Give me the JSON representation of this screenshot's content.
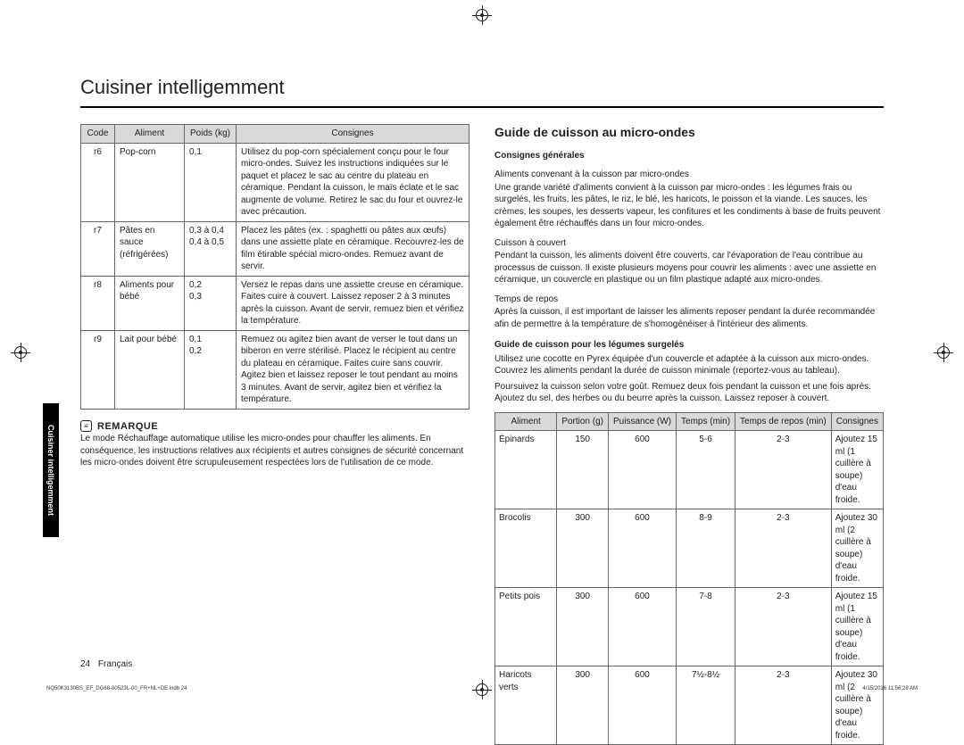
{
  "heading": "Cuisiner intelligemment",
  "sidetab": "Cuisiner intelligemment",
  "table1": {
    "headers": [
      "Code",
      "Aliment",
      "Poids (kg)",
      "Consignes"
    ],
    "rows": [
      {
        "code": "r6",
        "aliment": "Pop-corn",
        "poids": "0,1",
        "cons": "Utilisez du pop-corn spécialement conçu pour le four micro-ondes. Suivez les instructions indiquées sur le paquet et placez le sac au centre du plateau en céramique. Pendant la cuisson, le maïs éclate et le sac augmente de volume. Retirez le sac du four et ouvrez-le avec précaution."
      },
      {
        "code": "r7",
        "aliment": "Pâtes en sauce (réfrigérées)",
        "poids": "0,3 à 0,4\n0,4 à 0,5",
        "cons": "Placez les pâtes (ex. : spaghetti ou pâtes aux œufs) dans une assiette plate en céramique. Recouvrez-les de film étirable spécial micro-ondes. Remuez avant de servir."
      },
      {
        "code": "r8",
        "aliment": "Aliments pour bébé",
        "poids": "0,2\n0,3",
        "cons": "Versez le repas dans une assiette creuse en céramique. Faites cuire à couvert. Laissez reposer 2 à 3 minutes après la cuisson. Avant de servir, remuez bien et vérifiez la température."
      },
      {
        "code": "r9",
        "aliment": "Lait pour bébé",
        "poids": "0,1\n0,2",
        "cons": "Remuez ou agitez bien avant de verser le tout dans un biberon en verre stérilisé. Placez le récipient au centre du plateau en céramique. Faites cuire sans couvrir. Agitez bien et laissez reposer le tout pendant au moins 3 minutes. Avant de servir, agitez bien et vérifiez la température."
      }
    ]
  },
  "remark": {
    "label": "REMARQUE",
    "text": "Le mode Réchauffage automatique utilise les micro-ondes pour chauffer les aliments. En conséquence, les instructions relatives aux récipients et autres consignes de sécurité concernant les micro-ondes doivent être scrupuleusement respectées lors de l'utilisation de ce mode."
  },
  "right": {
    "title": "Guide de cuisson au micro-ondes",
    "h_cons": "Consignes générales",
    "h_aliments": "Aliments convenant à la cuisson par micro-ondes",
    "p_aliments": "Une grande variété d'aliments convient à la cuisson par micro-ondes : les légumes frais ou surgelés, les fruits, les pâtes, le riz, le blé, les haricots, le poisson et la viande. Les sauces, les crèmes, les soupes, les desserts vapeur, les confitures et les condiments à base de fruits peuvent également être réchauffés dans un four micro-ondes.",
    "h_couvert": "Cuisson à couvert",
    "p_couvert": "Pendant la cuisson, les aliments doivent être couverts, car l'évaporation de l'eau contribue au processus de cuisson. Il existe plusieurs moyens pour couvrir les aliments : avec une assiette en céramique, un couvercle en plastique ou un film plastique adapté aux micro-ondes.",
    "h_repos": "Temps de repos",
    "p_repos": "Après la cuisson, il est important de laisser les aliments reposer pendant la durée recommandée afin de permettre à la température de s'homogénéiser à l'intérieur des aliments.",
    "h_guide2": "Guide de cuisson pour les légumes surgelés",
    "p_guide2a": "Utilisez une cocotte en Pyrex équipée d'un couvercle et adaptée à la cuisson aux micro-ondes. Couvrez les aliments pendant la durée de cuisson minimale (reportez-vous au tableau).",
    "p_guide2b": "Poursuivez la cuisson selon votre goût. Remuez deux fois pendant la cuisson et une fois après. Ajoutez du sel, des herbes ou du beurre après la cuisson. Laissez reposer à couvert."
  },
  "table2": {
    "headers": [
      "Aliment",
      "Portion (g)",
      "Puissance (W)",
      "Temps (min)",
      "Temps de repos (min)",
      "Consignes"
    ],
    "rows": [
      {
        "a": "Épinards",
        "p": "150",
        "w": "600",
        "t": "5-6",
        "r": "2-3",
        "c": "Ajoutez 15 ml (1 cuillère à soupe) d'eau froide."
      },
      {
        "a": "Brocolis",
        "p": "300",
        "w": "600",
        "t": "8-9",
        "r": "2-3",
        "c": "Ajoutez 30 ml (2 cuillère à soupe) d'eau froide."
      },
      {
        "a": "Petits pois",
        "p": "300",
        "w": "600",
        "t": "7-8",
        "r": "2-3",
        "c": "Ajoutez 15 ml (1 cuillère à soupe) d'eau froide."
      },
      {
        "a": "Haricots verts",
        "p": "300",
        "w": "600",
        "t": "7½-8½",
        "r": "2-3",
        "c": "Ajoutez 30 ml (2 cuillère à soupe) d'eau froide."
      }
    ]
  },
  "footer": {
    "page": "24",
    "lang": "Français",
    "indd": "NQ50K3130BS_EF_DG68-00523L-00_FR+NL+DE.indb   24",
    "stamp": "4/15/2016   11:56:28 AM"
  }
}
